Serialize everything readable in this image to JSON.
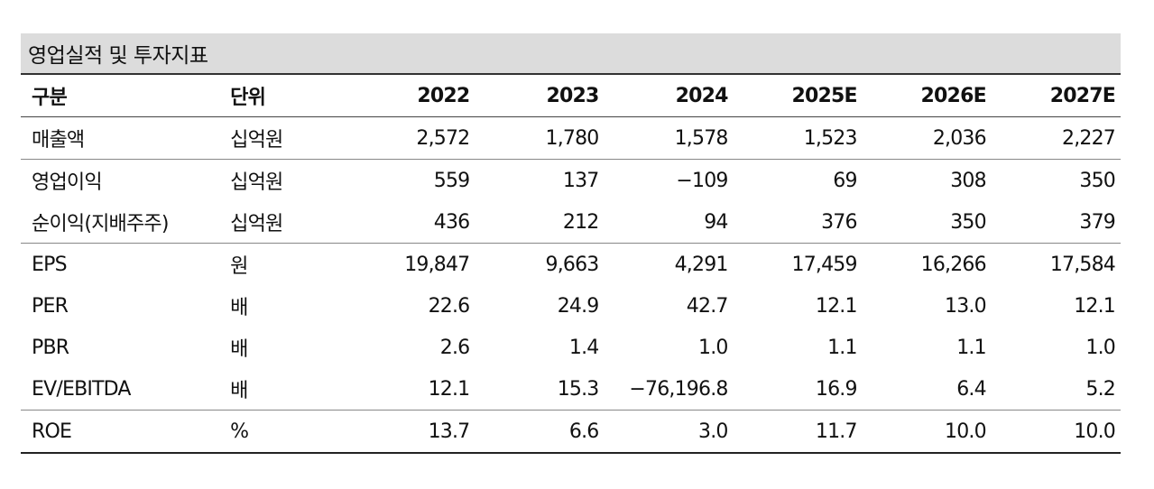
{
  "title": "영업실적 및 투자지표",
  "headers": [
    "구분",
    "단위",
    "2022",
    "2023",
    "2024",
    "2025E",
    "2026E",
    "2027E"
  ],
  "rows": [
    {
      "label": "매출액",
      "unit": "십억원",
      "values": [
        "2,572",
        "1,780",
        "1,578",
        "1,523",
        "2,036",
        "2,227"
      ]
    },
    {
      "label": "영업이익",
      "unit": "십억원",
      "values": [
        "559",
        "137",
        "−109",
        "69",
        "308",
        "350"
      ]
    },
    {
      "label": "순이익(지배주주)",
      "unit": "십억원",
      "values": [
        "436",
        "212",
        "94",
        "376",
        "350",
        "379"
      ]
    },
    {
      "label": "EPS",
      "unit": "원",
      "values": [
        "19,847",
        "9,663",
        "4,291",
        "17,459",
        "16,266",
        "17,584"
      ]
    },
    {
      "label": "PER",
      "unit": "배",
      "values": [
        "22.6",
        "24.9",
        "42.7",
        "12.1",
        "13.0",
        "12.1"
      ]
    },
    {
      "label": "PBR",
      "unit": "배",
      "values": [
        "2.6",
        "1.4",
        "1.0",
        "1.1",
        "1.1",
        "1.0"
      ]
    },
    {
      "label": "EV/EBITDA",
      "unit": "배",
      "values": [
        "12.1",
        "15.3",
        "−76,196.8",
        "16.9",
        "6.4",
        "5.2"
      ]
    },
    {
      "label": "ROE",
      "unit": "%",
      "values": [
        "13.7",
        "6.6",
        "3.0",
        "11.7",
        "10.0",
        "10.0"
      ]
    }
  ]
}
